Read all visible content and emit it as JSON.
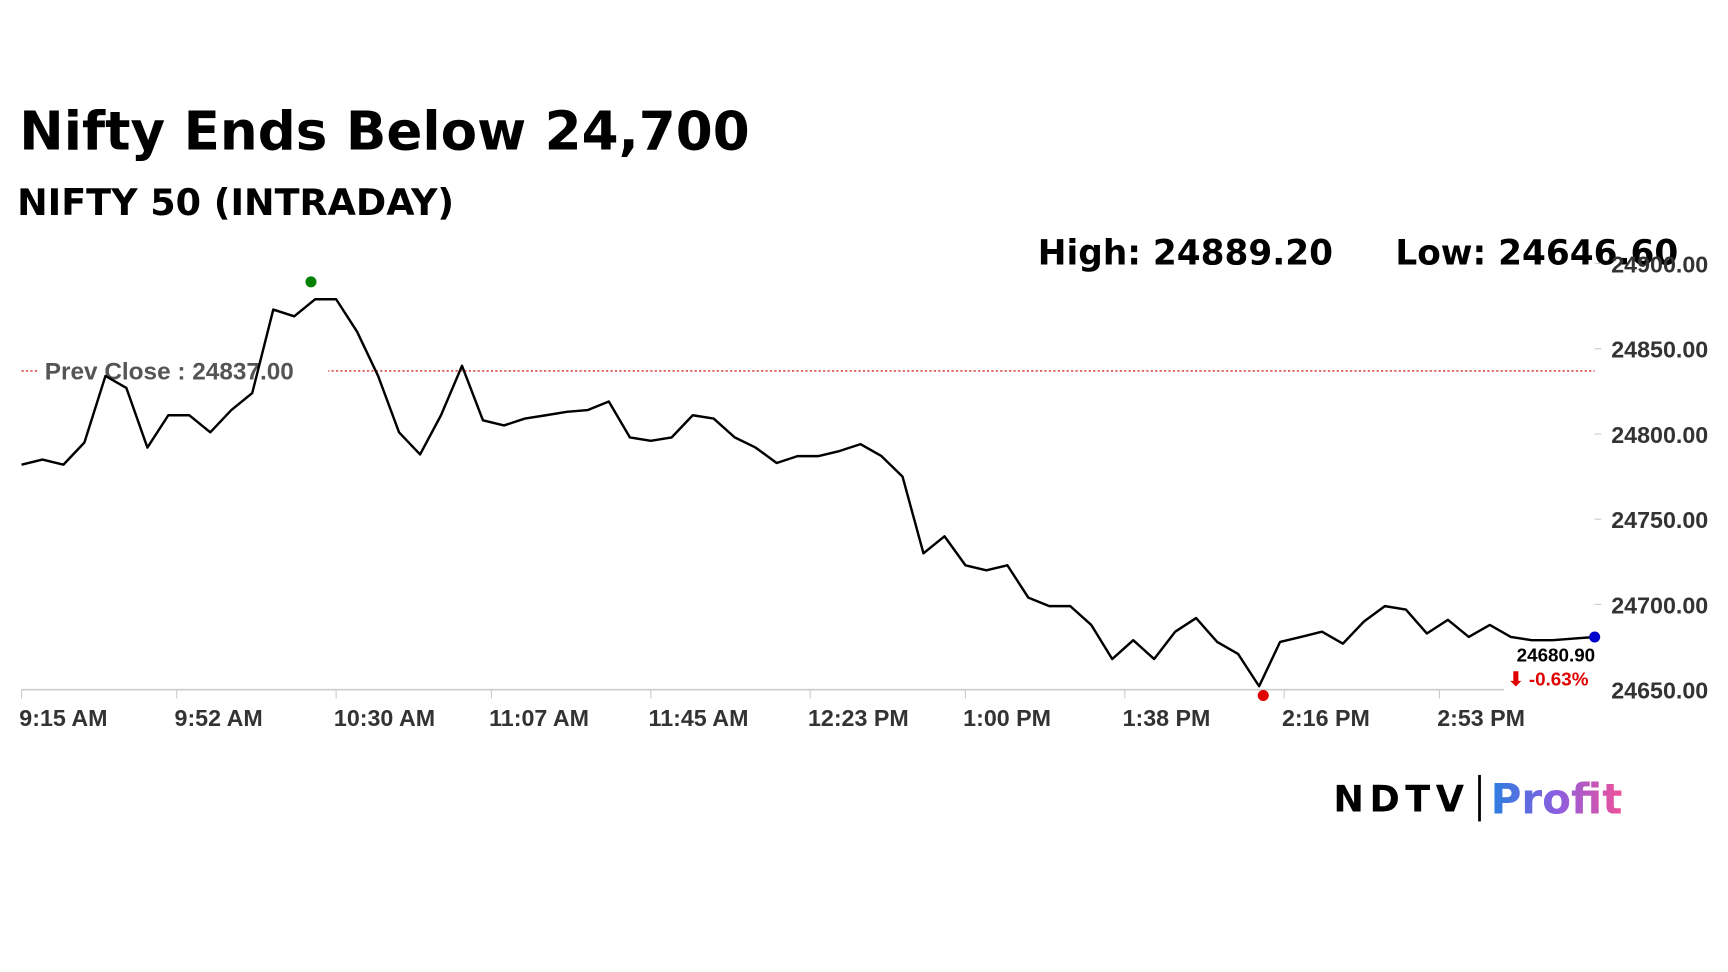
{
  "chart_data": {
    "type": "line",
    "title": "Nifty Ends Below 24,700",
    "subtitle": "NIFTY 50 (INTRADAY)",
    "color": "#000000",
    "x": [
      "9:15 AM",
      "9:20 AM",
      "9:25 AM",
      "9:30 AM",
      "9:35 AM",
      "9:40 AM",
      "9:45 AM",
      "9:50 AM",
      "9:55 AM",
      "10:00 AM",
      "10:05 AM",
      "10:10 AM",
      "10:15 AM",
      "10:20 AM",
      "10:25 AM",
      "10:30 AM",
      "10:35 AM",
      "10:40 AM",
      "10:45 AM",
      "10:50 AM",
      "10:55 AM",
      "11:00 AM",
      "11:05 AM",
      "11:10 AM",
      "11:15 AM",
      "11:20 AM",
      "11:25 AM",
      "11:30 AM",
      "11:35 AM",
      "11:40 AM",
      "11:45 AM",
      "11:50 AM",
      "11:55 AM",
      "12:00 PM",
      "12:05 PM",
      "12:10 PM",
      "12:15 PM",
      "12:20 PM",
      "12:25 PM",
      "12:30 PM",
      "12:35 PM",
      "12:40 PM",
      "12:45 PM",
      "12:50 PM",
      "12:55 PM",
      "1:00 PM",
      "1:05 PM",
      "1:10 PM",
      "1:15 PM",
      "1:20 PM",
      "1:25 PM",
      "1:30 PM",
      "1:35 PM",
      "1:40 PM",
      "1:45 PM",
      "1:50 PM",
      "1:55 PM",
      "2:00 PM",
      "2:05 PM",
      "2:10 PM",
      "2:15 PM",
      "2:20 PM",
      "2:25 PM",
      "2:30 PM",
      "2:35 PM",
      "2:40 PM",
      "2:45 PM",
      "2:50 PM",
      "2:55 PM",
      "3:00 PM",
      "3:05 PM",
      "3:10 PM",
      "3:15 PM",
      "3:20 PM",
      "3:25 PM",
      "3:30 PM"
    ],
    "values": [
      24782,
      24785,
      24782,
      24795,
      24834,
      24827,
      24792,
      24811,
      24811,
      24801,
      24814,
      24824,
      24873,
      24869,
      24879,
      24879,
      24860,
      24834,
      24801,
      24788,
      24811,
      24840,
      24808,
      24805,
      24809,
      24811,
      24813,
      24814,
      24819,
      24798,
      24796,
      24798,
      24811,
      24809,
      24798,
      24792,
      24783,
      24787,
      24787,
      24790,
      24794,
      24787,
      24775,
      24730,
      24740,
      24723,
      24720,
      24723,
      24704,
      24699,
      24699,
      24688,
      24668,
      24679,
      24668,
      24684,
      24692,
      24678,
      24671,
      24652,
      24678,
      24681,
      24684,
      24677,
      24690,
      24699,
      24697,
      24683,
      24691,
      24681,
      24688,
      24681,
      24679,
      24679,
      24680,
      24680.9
    ],
    "xlim": [
      "9:15 AM",
      "3:30 PM"
    ],
    "xticks": [
      "9:15 AM",
      "9:52 AM",
      "10:30 AM",
      "11:07 AM",
      "11:45 AM",
      "12:23 PM",
      "1:00 PM",
      "1:38 PM",
      "2:16 PM",
      "2:53 PM"
    ],
    "ylim": [
      24650,
      24900
    ],
    "yticks": [
      {
        "value": 24650,
        "label": "24650.00"
      },
      {
        "value": 24700,
        "label": "24700.00"
      },
      {
        "value": 24750,
        "label": "24750.00"
      },
      {
        "value": 24800,
        "label": "24800.00"
      },
      {
        "value": 24850,
        "label": "24850.00"
      },
      {
        "value": 24900,
        "label": "24900.00"
      }
    ],
    "prev_close": {
      "value": 24837,
      "label": "Prev Close : 24837.00",
      "color": "#cc0000"
    },
    "high": {
      "x": "10:24 AM",
      "value": 24889.2,
      "label": "High: 24889.20",
      "color": "#008000"
    },
    "low": {
      "x": "2:11 PM",
      "value": 24646.6,
      "label": "Low: 24646.60",
      "color": "#e00000"
    },
    "last": {
      "x": "3:30 PM",
      "value": 24680.9,
      "label": "24680.90",
      "change": "⬇ -0.63%",
      "color": "#0000cc"
    }
  },
  "brand": {
    "name": "NDTV",
    "product": "Profit"
  }
}
